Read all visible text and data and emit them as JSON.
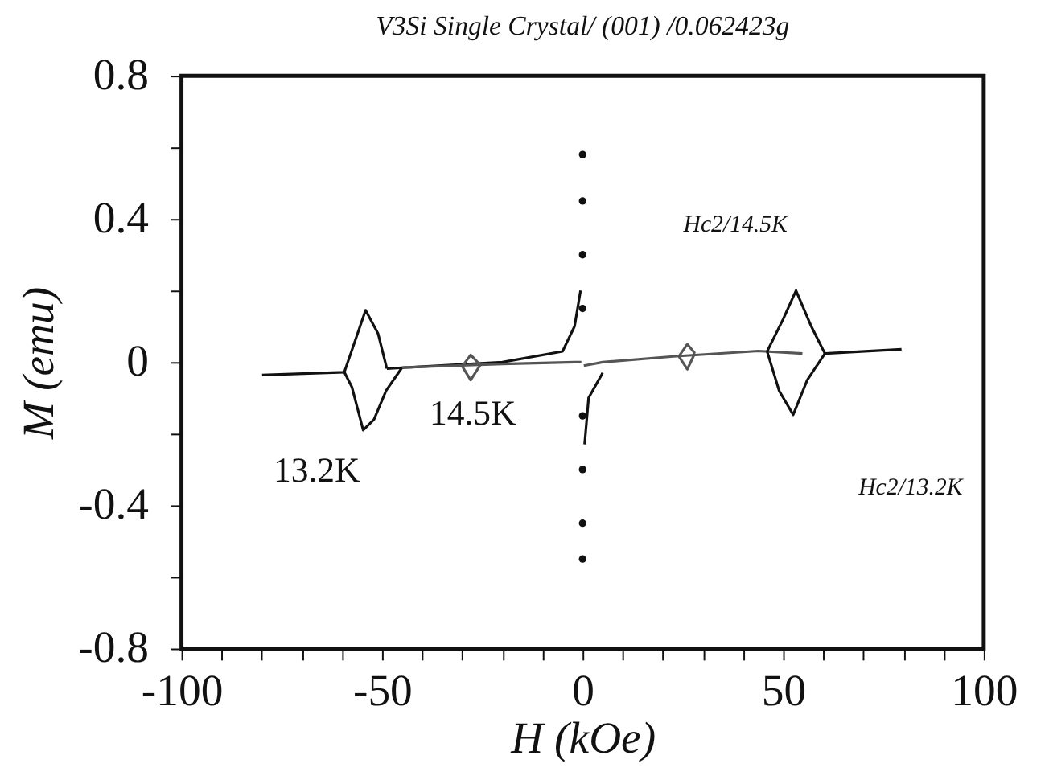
{
  "chart_data": {
    "type": "line",
    "title": "V3Si Single Crystal/   (001) /0.062423g",
    "xlabel": "H (kOe)",
    "ylabel": "M (emu)",
    "series": [
      {
        "color": "#111111",
        "x": [
          -79.9,
          -59.4,
          -57,
          -54.1,
          -51,
          -48.8
        ],
        "values": [
          -0.036,
          -0.028,
          0.05,
          0.145,
          0.08,
          -0.018
        ]
      },
      {
        "color": "#111111",
        "x": [
          -59.4,
          -57.5,
          -54.7,
          -52,
          -49,
          -45
        ],
        "values": [
          -0.028,
          -0.07,
          -0.19,
          -0.16,
          -0.08,
          -0.015
        ]
      },
      {
        "color": "#111111",
        "x": [
          -48.8,
          -20,
          -5,
          -2,
          -0.5
        ],
        "values": [
          -0.018,
          0.0,
          0.03,
          0.1,
          0.2
        ]
      },
      {
        "color": "#555555",
        "x": [
          -45,
          -20,
          -2,
          -0.3
        ],
        "values": [
          -0.015,
          -0.005,
          0.0,
          0.0
        ]
      },
      {
        "color": "#555555",
        "x": [
          -30,
          -27.9,
          -25.5
        ],
        "values": [
          -0.012,
          0.02,
          -0.008
        ]
      },
      {
        "color": "#555555",
        "x": [
          -30,
          -27.9,
          -25.5
        ],
        "values": [
          -0.012,
          -0.05,
          -0.008
        ]
      },
      {
        "type": "scatter",
        "color": "#111111",
        "x": [
          0,
          0,
          0,
          0,
          0,
          0,
          0,
          0
        ],
        "values": [
          0.58,
          0.45,
          0.3,
          0.15,
          -0.15,
          -0.3,
          -0.45,
          -0.55
        ]
      },
      {
        "color": "#111111",
        "x": [
          0.5,
          1.5,
          5
        ],
        "values": [
          -0.23,
          -0.1,
          -0.03
        ]
      },
      {
        "color": "#555555",
        "x": [
          0.3,
          5,
          22.6,
          43.8,
          54.8
        ],
        "values": [
          -0.01,
          0.0,
          0.016,
          0.031,
          0.024
        ]
      },
      {
        "color": "#555555",
        "x": [
          24,
          26.1,
          28
        ],
        "values": [
          0.016,
          0.05,
          0.025
        ]
      },
      {
        "color": "#555555",
        "x": [
          24,
          26.1,
          28
        ],
        "values": [
          0.016,
          -0.02,
          0.025
        ]
      },
      {
        "color": "#111111",
        "x": [
          46,
          50,
          53.2,
          57,
          60.4,
          79.5
        ],
        "values": [
          0.03,
          0.12,
          0.2,
          0.1,
          0.024,
          0.036
        ]
      },
      {
        "color": "#111111",
        "x": [
          46,
          49,
          52.5,
          56,
          60.4
        ],
        "values": [
          0.03,
          -0.08,
          -0.147,
          -0.05,
          0.024
        ]
      }
    ],
    "xlim": [
      -100,
      100
    ],
    "ylim": [
      -0.8,
      0.8
    ],
    "xticks": [
      -100,
      {
        "value": -90,
        "label": null
      },
      {
        "value": -80,
        "label": null
      },
      {
        "value": -70,
        "label": null
      },
      {
        "value": -60,
        "label": null
      },
      -50,
      {
        "value": -40,
        "label": null
      },
      {
        "value": -30,
        "label": null
      },
      {
        "value": -20,
        "label": null
      },
      {
        "value": -10,
        "label": null
      },
      0,
      {
        "value": 10,
        "label": null
      },
      {
        "value": 20,
        "label": null
      },
      {
        "value": 30,
        "label": null
      },
      {
        "value": 40,
        "label": null
      },
      50,
      {
        "value": 60,
        "label": null
      },
      {
        "value": 70,
        "label": null
      },
      {
        "value": 80,
        "label": null
      },
      {
        "value": 90,
        "label": null
      },
      100
    ],
    "yticks": [
      -0.8,
      {
        "value": -0.6,
        "label": null
      },
      -0.4,
      {
        "value": -0.2,
        "label": null
      },
      0,
      {
        "value": 0.2,
        "label": null
      },
      0.4,
      {
        "value": 0.6,
        "label": null
      },
      0.8
    ],
    "annotations": [
      "13.2K",
      "14.5K",
      "Hc2/14.5K",
      "Hc2/13.2K"
    ],
    "grid": false
  }
}
